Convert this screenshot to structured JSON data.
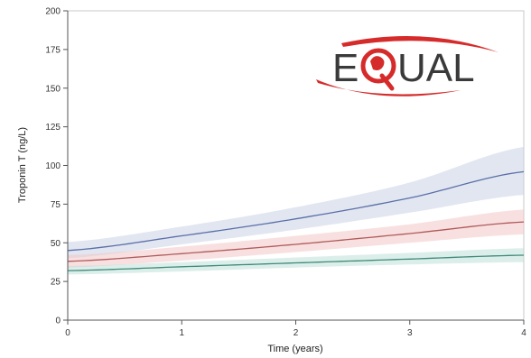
{
  "chart_data": {
    "type": "line",
    "title": "",
    "xlabel": "Time (years)",
    "ylabel": "Troponin T (ng/L)",
    "xlim": [
      0,
      4
    ],
    "ylim": [
      0,
      200
    ],
    "xticks": [
      0,
      1,
      2,
      3,
      4
    ],
    "yticks": [
      0,
      25,
      50,
      75,
      100,
      125,
      150,
      175,
      200
    ],
    "grid": false,
    "x": [
      0,
      1,
      2,
      3,
      4
    ],
    "series": [
      {
        "color": "#5b6fa8",
        "band_color": "#c9d1e6",
        "values": [
          45,
          54.5,
          65.5,
          79,
          96
        ],
        "lower": [
          40,
          49,
          58.5,
          69.5,
          81
        ],
        "upper": [
          50.5,
          60.5,
          73,
          89,
          112
        ]
      },
      {
        "color": "#b05a5a",
        "band_color": "#f3c7c7",
        "values": [
          38,
          43,
          49,
          56,
          63.5
        ],
        "lower": [
          34,
          38.5,
          44,
          50,
          55.5
        ],
        "upper": [
          42,
          47.5,
          54.5,
          62,
          71.5
        ]
      },
      {
        "color": "#3f8a78",
        "band_color": "#bfe0d8",
        "values": [
          32,
          34.5,
          37,
          39.5,
          42
        ],
        "lower": [
          29.5,
          31.5,
          34,
          36,
          37.5
        ],
        "upper": [
          35,
          37.5,
          40.5,
          43.5,
          46.5
        ]
      }
    ]
  },
  "logo": {
    "text_left": "E",
    "text_right": "UAL",
    "ring_color": "#d62b2b"
  }
}
